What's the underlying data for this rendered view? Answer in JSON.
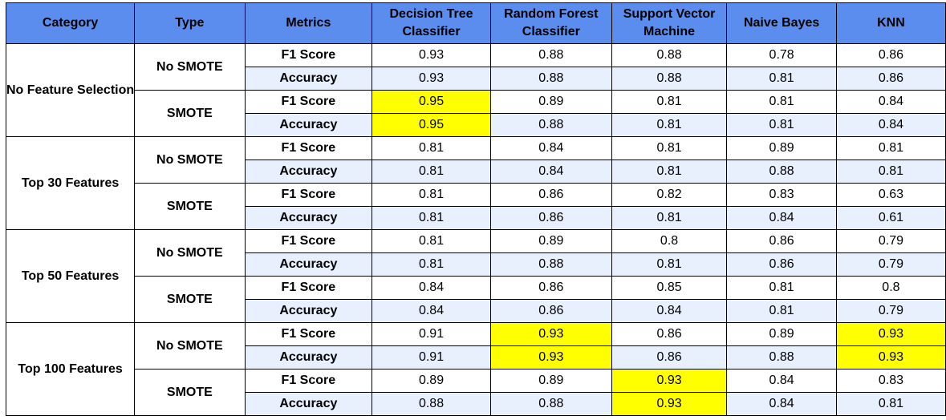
{
  "headers": [
    "Category",
    "Type",
    "Metrics",
    "Decision Tree Classifier",
    "Random Forest Classifier",
    "Support Vector Machine",
    "Naive Bayes",
    "KNN"
  ],
  "highlight_color": "#ffff00",
  "header_color": "#5b8dee",
  "alt_row_color": "#e8f0fe",
  "groups": [
    {
      "category": "No Feature Selection",
      "subgroups": [
        {
          "type": "No SMOTE",
          "rows": [
            {
              "metric": "F1 Score",
              "values": [
                "0.93",
                "0.88",
                "0.88",
                "0.78",
                "0.86"
              ],
              "highlight": []
            },
            {
              "metric": "Accuracy",
              "values": [
                "0.93",
                "0.88",
                "0.88",
                "0.81",
                "0.86"
              ],
              "highlight": []
            }
          ]
        },
        {
          "type": "SMOTE",
          "rows": [
            {
              "metric": "F1 Score",
              "values": [
                "0.95",
                "0.89",
                "0.81",
                "0.81",
                "0.84"
              ],
              "highlight": [
                0
              ]
            },
            {
              "metric": "Accuracy",
              "values": [
                "0.95",
                "0.88",
                "0.81",
                "0.81",
                "0.84"
              ],
              "highlight": [
                0
              ]
            }
          ]
        }
      ]
    },
    {
      "category": "Top 30 Features",
      "subgroups": [
        {
          "type": "No SMOTE",
          "rows": [
            {
              "metric": "F1 Score",
              "values": [
                "0.81",
                "0.84",
                "0.81",
                "0.89",
                "0.81"
              ],
              "highlight": []
            },
            {
              "metric": "Accuracy",
              "values": [
                "0.81",
                "0.84",
                "0.81",
                "0.88",
                "0.81"
              ],
              "highlight": []
            }
          ]
        },
        {
          "type": "SMOTE",
          "rows": [
            {
              "metric": "F1 Score",
              "values": [
                "0.81",
                "0.86",
                "0.82",
                "0.83",
                "0.63"
              ],
              "highlight": []
            },
            {
              "metric": "Accuracy",
              "values": [
                "0.81",
                "0.86",
                "0.81",
                "0.84",
                "0.61"
              ],
              "highlight": []
            }
          ]
        }
      ]
    },
    {
      "category": "Top 50 Features",
      "subgroups": [
        {
          "type": "No SMOTE",
          "rows": [
            {
              "metric": "F1 Score",
              "values": [
                "0.81",
                "0.89",
                "0.8",
                "0.86",
                "0.79"
              ],
              "highlight": []
            },
            {
              "metric": "Accuracy",
              "values": [
                "0.81",
                "0.88",
                "0.81",
                "0.86",
                "0.79"
              ],
              "highlight": []
            }
          ]
        },
        {
          "type": "SMOTE",
          "rows": [
            {
              "metric": "F1 Score",
              "values": [
                "0.84",
                "0.86",
                "0.85",
                "0.81",
                "0.8"
              ],
              "highlight": []
            },
            {
              "metric": "Accuracy",
              "values": [
                "0.84",
                "0.86",
                "0.84",
                "0.81",
                "0.79"
              ],
              "highlight": []
            }
          ]
        }
      ]
    },
    {
      "category": "Top 100 Features",
      "subgroups": [
        {
          "type": "No SMOTE",
          "rows": [
            {
              "metric": "F1 Score",
              "values": [
                "0.91",
                "0.93",
                "0.86",
                "0.89",
                "0.93"
              ],
              "highlight": [
                1,
                4
              ]
            },
            {
              "metric": "Accuracy",
              "values": [
                "0.91",
                "0.93",
                "0.86",
                "0.88",
                "0.93"
              ],
              "highlight": [
                1,
                4
              ]
            }
          ]
        },
        {
          "type": "SMOTE",
          "rows": [
            {
              "metric": "F1 Score",
              "values": [
                "0.89",
                "0.89",
                "0.93",
                "0.84",
                "0.83"
              ],
              "highlight": [
                2
              ]
            },
            {
              "metric": "Accuracy",
              "values": [
                "0.88",
                "0.88",
                "0.93",
                "0.84",
                "0.81"
              ],
              "highlight": [
                2
              ]
            }
          ]
        }
      ]
    }
  ]
}
